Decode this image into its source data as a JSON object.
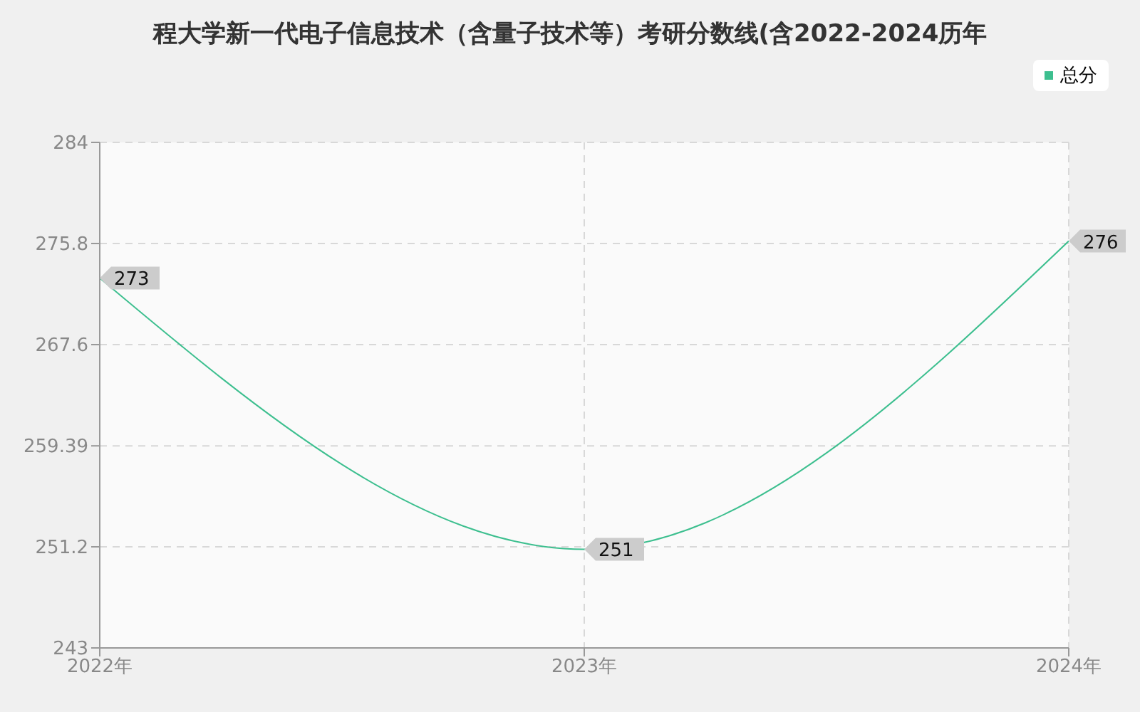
{
  "chart_data": {
    "type": "line",
    "title": "程大学新一代电子信息技术（含量子技术等）考研分数线(含2022-2024历年",
    "categories": [
      "2022年",
      "2023年",
      "2024年"
    ],
    "series": [
      {
        "name": "总分",
        "color": "#3dbf8f",
        "values": [
          273,
          251,
          276
        ]
      }
    ],
    "ylim": [
      243,
      284
    ],
    "yticks": [
      243,
      251.2,
      259.39,
      267.6,
      275.8,
      284
    ],
    "grid": true,
    "legend": "top right",
    "data_labels": true,
    "marker": "none",
    "line_style": "solid"
  }
}
